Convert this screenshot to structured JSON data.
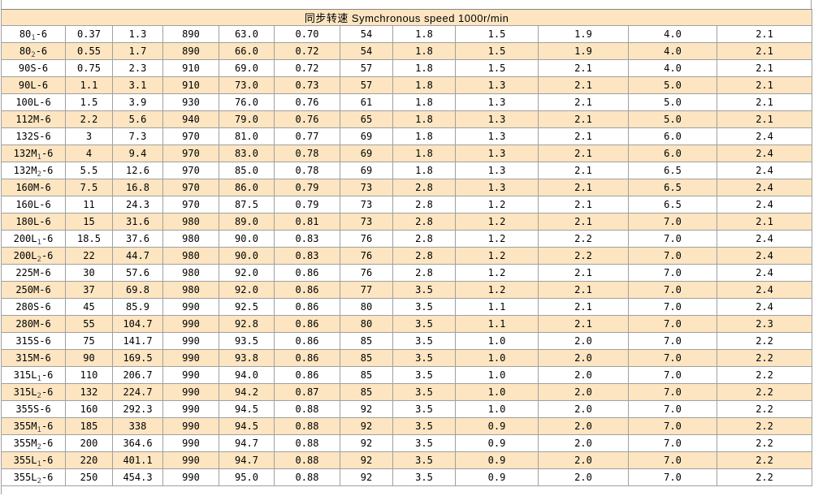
{
  "table": {
    "header": "同步转速 Symchronous speed 1000r/min",
    "rows": [
      {
        "model_base": "80",
        "model_sub": "1",
        "model_suffix": "-6",
        "values": [
          "0.37",
          "1.3",
          "890",
          "63.0",
          "0.70",
          "54",
          "1.8",
          "1.5",
          "1.9",
          "4.0",
          "2.1"
        ]
      },
      {
        "model_base": "80",
        "model_sub": "2",
        "model_suffix": "-6",
        "values": [
          "0.55",
          "1.7",
          "890",
          "66.0",
          "0.72",
          "54",
          "1.8",
          "1.5",
          "1.9",
          "4.0",
          "2.1"
        ]
      },
      {
        "model_base": "90S",
        "model_sub": "",
        "model_suffix": "-6",
        "values": [
          "0.75",
          "2.3",
          "910",
          "69.0",
          "0.72",
          "57",
          "1.8",
          "1.5",
          "2.1",
          "4.0",
          "2.1"
        ]
      },
      {
        "model_base": "90L",
        "model_sub": "",
        "model_suffix": "-6",
        "values": [
          "1.1",
          "3.1",
          "910",
          "73.0",
          "0.73",
          "57",
          "1.8",
          "1.3",
          "2.1",
          "5.0",
          "2.1"
        ]
      },
      {
        "model_base": "100L",
        "model_sub": "",
        "model_suffix": "-6",
        "values": [
          "1.5",
          "3.9",
          "930",
          "76.0",
          "0.76",
          "61",
          "1.8",
          "1.3",
          "2.1",
          "5.0",
          "2.1"
        ]
      },
      {
        "model_base": "112M",
        "model_sub": "",
        "model_suffix": "-6",
        "values": [
          "2.2",
          "5.6",
          "940",
          "79.0",
          "0.76",
          "65",
          "1.8",
          "1.3",
          "2.1",
          "5.0",
          "2.1"
        ]
      },
      {
        "model_base": "132S",
        "model_sub": "",
        "model_suffix": "-6",
        "values": [
          "3",
          "7.3",
          "970",
          "81.0",
          "0.77",
          "69",
          "1.8",
          "1.3",
          "2.1",
          "6.0",
          "2.4"
        ]
      },
      {
        "model_base": "132M",
        "model_sub": "1",
        "model_suffix": "-6",
        "values": [
          "4",
          "9.4",
          "970",
          "83.0",
          "0.78",
          "69",
          "1.8",
          "1.3",
          "2.1",
          "6.0",
          "2.4"
        ]
      },
      {
        "model_base": "132M",
        "model_sub": "2",
        "model_suffix": "-6",
        "values": [
          "5.5",
          "12.6",
          "970",
          "85.0",
          "0.78",
          "69",
          "1.8",
          "1.3",
          "2.1",
          "6.5",
          "2.4"
        ]
      },
      {
        "model_base": "160M",
        "model_sub": "",
        "model_suffix": "-6",
        "values": [
          "7.5",
          "16.8",
          "970",
          "86.0",
          "0.79",
          "73",
          "2.8",
          "1.3",
          "2.1",
          "6.5",
          "2.4"
        ]
      },
      {
        "model_base": "160L",
        "model_sub": "",
        "model_suffix": "-6",
        "values": [
          "11",
          "24.3",
          "970",
          "87.5",
          "0.79",
          "73",
          "2.8",
          "1.2",
          "2.1",
          "6.5",
          "2.4"
        ]
      },
      {
        "model_base": "180L",
        "model_sub": "",
        "model_suffix": "-6",
        "values": [
          "15",
          "31.6",
          "980",
          "89.0",
          "0.81",
          "73",
          "2.8",
          "1.2",
          "2.1",
          "7.0",
          "2.1"
        ]
      },
      {
        "model_base": "200L",
        "model_sub": "1",
        "model_suffix": "-6",
        "values": [
          "18.5",
          "37.6",
          "980",
          "90.0",
          "0.83",
          "76",
          "2.8",
          "1.2",
          "2.2",
          "7.0",
          "2.4"
        ]
      },
      {
        "model_base": "200L",
        "model_sub": "2",
        "model_suffix": "-6",
        "values": [
          "22",
          "44.7",
          "980",
          "90.0",
          "0.83",
          "76",
          "2.8",
          "1.2",
          "2.2",
          "7.0",
          "2.4"
        ]
      },
      {
        "model_base": "225M",
        "model_sub": "",
        "model_suffix": "-6",
        "values": [
          "30",
          "57.6",
          "980",
          "92.0",
          "0.86",
          "76",
          "2.8",
          "1.2",
          "2.1",
          "7.0",
          "2.4"
        ]
      },
      {
        "model_base": "250M",
        "model_sub": "",
        "model_suffix": "-6",
        "values": [
          "37",
          "69.8",
          "980",
          "92.0",
          "0.86",
          "77",
          "3.5",
          "1.2",
          "2.1",
          "7.0",
          "2.4"
        ]
      },
      {
        "model_base": "280S",
        "model_sub": "",
        "model_suffix": "-6",
        "values": [
          "45",
          "85.9",
          "990",
          "92.5",
          "0.86",
          "80",
          "3.5",
          "1.1",
          "2.1",
          "7.0",
          "2.4"
        ]
      },
      {
        "model_base": "280M",
        "model_sub": "",
        "model_suffix": "-6",
        "values": [
          "55",
          "104.7",
          "990",
          "92.8",
          "0.86",
          "80",
          "3.5",
          "1.1",
          "2.1",
          "7.0",
          "2.3"
        ]
      },
      {
        "model_base": "315S",
        "model_sub": "",
        "model_suffix": "-6",
        "values": [
          "75",
          "141.7",
          "990",
          "93.5",
          "0.86",
          "85",
          "3.5",
          "1.0",
          "2.0",
          "7.0",
          "2.2"
        ]
      },
      {
        "model_base": "315M",
        "model_sub": "",
        "model_suffix": "-6",
        "values": [
          "90",
          "169.5",
          "990",
          "93.8",
          "0.86",
          "85",
          "3.5",
          "1.0",
          "2.0",
          "7.0",
          "2.2"
        ]
      },
      {
        "model_base": "315L",
        "model_sub": "1",
        "model_suffix": "-6",
        "values": [
          "110",
          "206.7",
          "990",
          "94.0",
          "0.86",
          "85",
          "3.5",
          "1.0",
          "2.0",
          "7.0",
          "2.2"
        ]
      },
      {
        "model_base": "315L",
        "model_sub": "2",
        "model_suffix": "-6",
        "values": [
          "132",
          "224.7",
          "990",
          "94.2",
          "0.87",
          "85",
          "3.5",
          "1.0",
          "2.0",
          "7.0",
          "2.2"
        ]
      },
      {
        "model_base": "355S",
        "model_sub": "",
        "model_suffix": "-6",
        "values": [
          "160",
          "292.3",
          "990",
          "94.5",
          "0.88",
          "92",
          "3.5",
          "1.0",
          "2.0",
          "7.0",
          "2.2"
        ]
      },
      {
        "model_base": "355M",
        "model_sub": "1",
        "model_suffix": "-6",
        "values": [
          "185",
          "338",
          "990",
          "94.5",
          "0.88",
          "92",
          "3.5",
          "0.9",
          "2.0",
          "7.0",
          "2.2"
        ]
      },
      {
        "model_base": "355M",
        "model_sub": "2",
        "model_suffix": "-6",
        "values": [
          "200",
          "364.6",
          "990",
          "94.7",
          "0.88",
          "92",
          "3.5",
          "0.9",
          "2.0",
          "7.0",
          "2.2"
        ]
      },
      {
        "model_base": "355L",
        "model_sub": "1",
        "model_suffix": "-6",
        "values": [
          "220",
          "401.1",
          "990",
          "94.7",
          "0.88",
          "92",
          "3.5",
          "0.9",
          "2.0",
          "7.0",
          "2.2"
        ]
      },
      {
        "model_base": "355L",
        "model_sub": "2",
        "model_suffix": "-6",
        "values": [
          "250",
          "454.3",
          "990",
          "95.0",
          "0.88",
          "92",
          "3.5",
          "0.9",
          "2.0",
          "7.0",
          "2.2"
        ]
      }
    ]
  },
  "colors": {
    "band_bg": "#fce5c0",
    "grid": "#a0a0a0",
    "text": "#000000"
  }
}
